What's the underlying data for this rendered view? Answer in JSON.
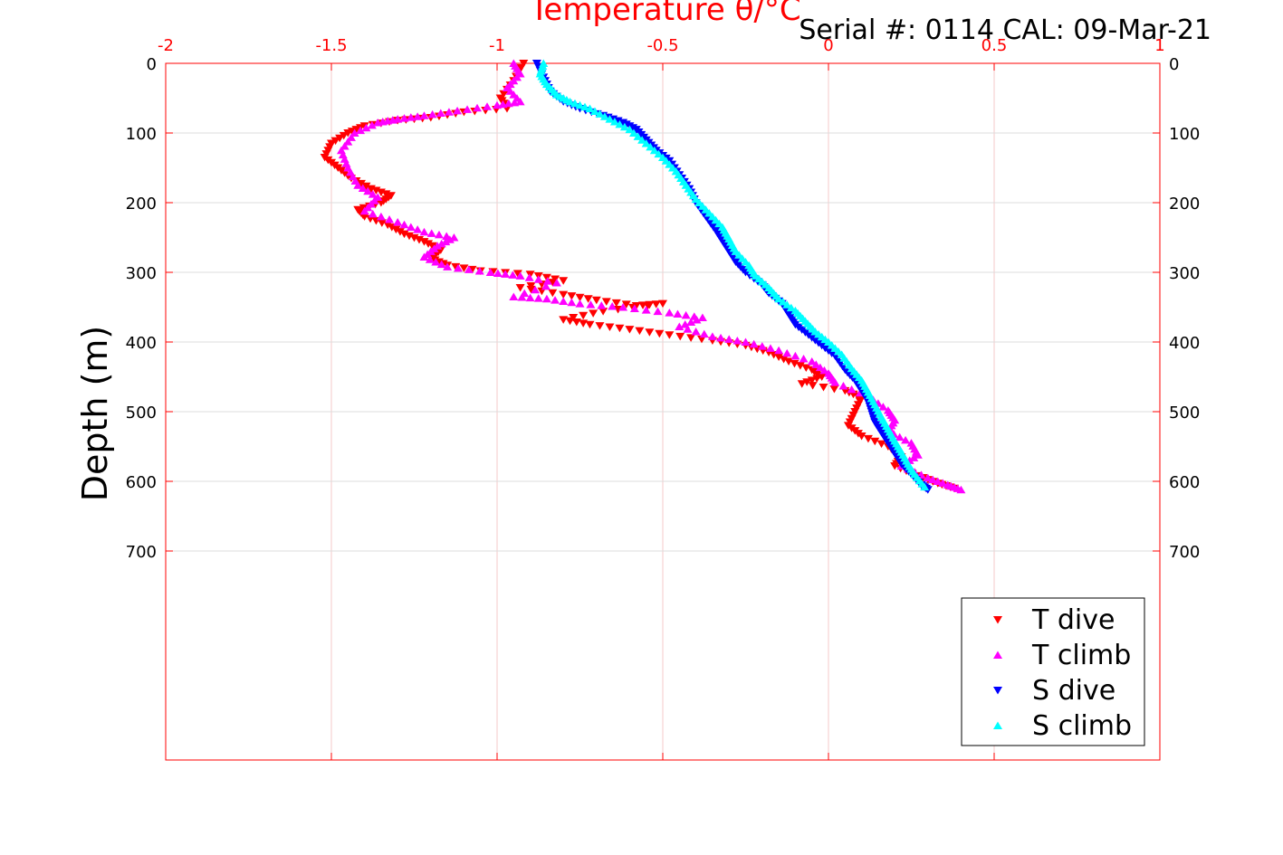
{
  "chart_data": {
    "type": "scatter",
    "title": "Temperature θ/°C",
    "subtitle": "Serial #: 0114  CAL: 09-Mar-21",
    "xlabel": "Temperature θ/°C",
    "ylabel": "Depth (m)",
    "xlim": [
      -2,
      1
    ],
    "ylim": [
      0,
      1000
    ],
    "y_reversed": true,
    "x_ticks": [
      "-2",
      "-1.5",
      "-1",
      "-0.5",
      "0",
      "0.5",
      "1"
    ],
    "x_tick_values": [
      -2,
      -1.5,
      -1,
      -0.5,
      0,
      0.5,
      1
    ],
    "y_ticks": [
      "0",
      "100",
      "200",
      "300",
      "400",
      "500",
      "600",
      "700"
    ],
    "y_tick_values": [
      0,
      100,
      200,
      300,
      400,
      500,
      600,
      700
    ],
    "grid": true,
    "legend_position": "bottom-right",
    "series": [
      {
        "name": "T dive",
        "marker": "triangle-down",
        "color": "#ff0000",
        "points": [
          [
            -0.92,
            0
          ],
          [
            -0.95,
            25
          ],
          [
            -0.99,
            50
          ],
          [
            -0.97,
            65
          ],
          [
            -1.1,
            70
          ],
          [
            -1.2,
            78
          ],
          [
            -1.3,
            82
          ],
          [
            -1.4,
            90
          ],
          [
            -1.45,
            100
          ],
          [
            -1.5,
            115
          ],
          [
            -1.52,
            135
          ],
          [
            -1.48,
            150
          ],
          [
            -1.44,
            165
          ],
          [
            -1.38,
            180
          ],
          [
            -1.32,
            190
          ],
          [
            -1.35,
            200
          ],
          [
            -1.42,
            210
          ],
          [
            -1.4,
            220
          ],
          [
            -1.33,
            232
          ],
          [
            -1.28,
            245
          ],
          [
            -1.22,
            256
          ],
          [
            -1.17,
            268
          ],
          [
            -1.2,
            280
          ],
          [
            -1.15,
            290
          ],
          [
            -1.05,
            298
          ],
          [
            -0.9,
            303
          ],
          [
            -0.8,
            312
          ],
          [
            -0.93,
            322
          ],
          [
            -0.8,
            332
          ],
          [
            -0.7,
            340
          ],
          [
            -0.58,
            348
          ],
          [
            -0.5,
            345
          ],
          [
            -0.68,
            356
          ],
          [
            -0.8,
            368
          ],
          [
            -0.72,
            375
          ],
          [
            -0.6,
            382
          ],
          [
            -0.48,
            390
          ],
          [
            -0.35,
            398
          ],
          [
            -0.25,
            405
          ],
          [
            -0.18,
            415
          ],
          [
            -0.12,
            428
          ],
          [
            -0.05,
            440
          ],
          [
            -0.02,
            450
          ],
          [
            -0.08,
            460
          ],
          [
            0.05,
            470
          ],
          [
            0.1,
            480
          ],
          [
            0.08,
            500
          ],
          [
            0.06,
            520
          ],
          [
            0.1,
            535
          ],
          [
            0.18,
            550
          ],
          [
            0.22,
            565
          ],
          [
            0.2,
            578
          ],
          [
            0.27,
            592
          ],
          [
            0.33,
            603
          ],
          [
            0.38,
            610
          ]
        ]
      },
      {
        "name": "T climb",
        "marker": "triangle-up",
        "color": "#ff00ff",
        "points": [
          [
            -0.95,
            0
          ],
          [
            -0.93,
            15
          ],
          [
            -0.97,
            35
          ],
          [
            -0.93,
            55
          ],
          [
            -1.0,
            60
          ],
          [
            -1.12,
            68
          ],
          [
            -1.22,
            75
          ],
          [
            -1.3,
            80
          ],
          [
            -1.36,
            85
          ],
          [
            -1.43,
            100
          ],
          [
            -1.47,
            125
          ],
          [
            -1.45,
            150
          ],
          [
            -1.42,
            175
          ],
          [
            -1.36,
            192
          ],
          [
            -1.4,
            212
          ],
          [
            -1.3,
            228
          ],
          [
            -1.22,
            242
          ],
          [
            -1.13,
            250
          ],
          [
            -1.18,
            262
          ],
          [
            -1.22,
            278
          ],
          [
            -1.15,
            292
          ],
          [
            -1.02,
            300
          ],
          [
            -0.93,
            305
          ],
          [
            -0.82,
            315
          ],
          [
            -0.95,
            335
          ],
          [
            -0.85,
            338
          ],
          [
            -0.75,
            345
          ],
          [
            -0.62,
            350
          ],
          [
            -0.48,
            358
          ],
          [
            -0.38,
            365
          ],
          [
            -0.45,
            378
          ],
          [
            -0.35,
            392
          ],
          [
            -0.25,
            400
          ],
          [
            -0.15,
            412
          ],
          [
            -0.05,
            428
          ],
          [
            0.0,
            445
          ],
          [
            0.02,
            458
          ],
          [
            0.12,
            478
          ],
          [
            0.18,
            498
          ],
          [
            0.2,
            512
          ],
          [
            0.18,
            528
          ],
          [
            0.25,
            545
          ],
          [
            0.27,
            562
          ],
          [
            0.22,
            578
          ],
          [
            0.3,
            595
          ],
          [
            0.36,
            605
          ],
          [
            0.4,
            612
          ]
        ]
      },
      {
        "name": "S dive",
        "marker": "triangle-down",
        "color": "#0000ff",
        "points": [
          [
            -0.88,
            0
          ],
          [
            -0.86,
            20
          ],
          [
            -0.84,
            40
          ],
          [
            -0.8,
            55
          ],
          [
            -0.75,
            65
          ],
          [
            -0.68,
            75
          ],
          [
            -0.62,
            85
          ],
          [
            -0.58,
            95
          ],
          [
            -0.55,
            110
          ],
          [
            -0.52,
            125
          ],
          [
            -0.48,
            140
          ],
          [
            -0.45,
            160
          ],
          [
            -0.42,
            180
          ],
          [
            -0.4,
            200
          ],
          [
            -0.37,
            220
          ],
          [
            -0.34,
            240
          ],
          [
            -0.32,
            255
          ],
          [
            -0.3,
            270
          ],
          [
            -0.28,
            285
          ],
          [
            -0.25,
            300
          ],
          [
            -0.2,
            318
          ],
          [
            -0.18,
            330
          ],
          [
            -0.14,
            345
          ],
          [
            -0.12,
            360
          ],
          [
            -0.1,
            375
          ],
          [
            -0.06,
            390
          ],
          [
            -0.02,
            405
          ],
          [
            0.02,
            420
          ],
          [
            0.05,
            440
          ],
          [
            0.08,
            455
          ],
          [
            0.1,
            470
          ],
          [
            0.12,
            485
          ],
          [
            0.13,
            500
          ],
          [
            0.14,
            515
          ],
          [
            0.16,
            530
          ],
          [
            0.18,
            545
          ],
          [
            0.2,
            560
          ],
          [
            0.22,
            575
          ],
          [
            0.25,
            590
          ],
          [
            0.28,
            605
          ],
          [
            0.3,
            612
          ]
        ]
      },
      {
        "name": "S climb",
        "marker": "triangle-up",
        "color": "#00ffff",
        "points": [
          [
            -0.86,
            0
          ],
          [
            -0.87,
            15
          ],
          [
            -0.85,
            30
          ],
          [
            -0.82,
            45
          ],
          [
            -0.78,
            55
          ],
          [
            -0.72,
            65
          ],
          [
            -0.66,
            80
          ],
          [
            -0.6,
            95
          ],
          [
            -0.55,
            115
          ],
          [
            -0.5,
            135
          ],
          [
            -0.46,
            155
          ],
          [
            -0.43,
            175
          ],
          [
            -0.4,
            195
          ],
          [
            -0.36,
            215
          ],
          [
            -0.32,
            235
          ],
          [
            -0.3,
            252
          ],
          [
            -0.28,
            270
          ],
          [
            -0.24,
            290
          ],
          [
            -0.22,
            305
          ],
          [
            -0.18,
            322
          ],
          [
            -0.15,
            338
          ],
          [
            -0.1,
            355
          ],
          [
            -0.07,
            370
          ],
          [
            -0.04,
            385
          ],
          [
            0.0,
            400
          ],
          [
            0.04,
            418
          ],
          [
            0.07,
            438
          ],
          [
            0.1,
            455
          ],
          [
            0.12,
            472
          ],
          [
            0.14,
            490
          ],
          [
            0.16,
            508
          ],
          [
            0.18,
            525
          ],
          [
            0.2,
            542
          ],
          [
            0.22,
            558
          ],
          [
            0.24,
            575
          ],
          [
            0.26,
            590
          ],
          [
            0.29,
            608
          ]
        ]
      }
    ]
  }
}
